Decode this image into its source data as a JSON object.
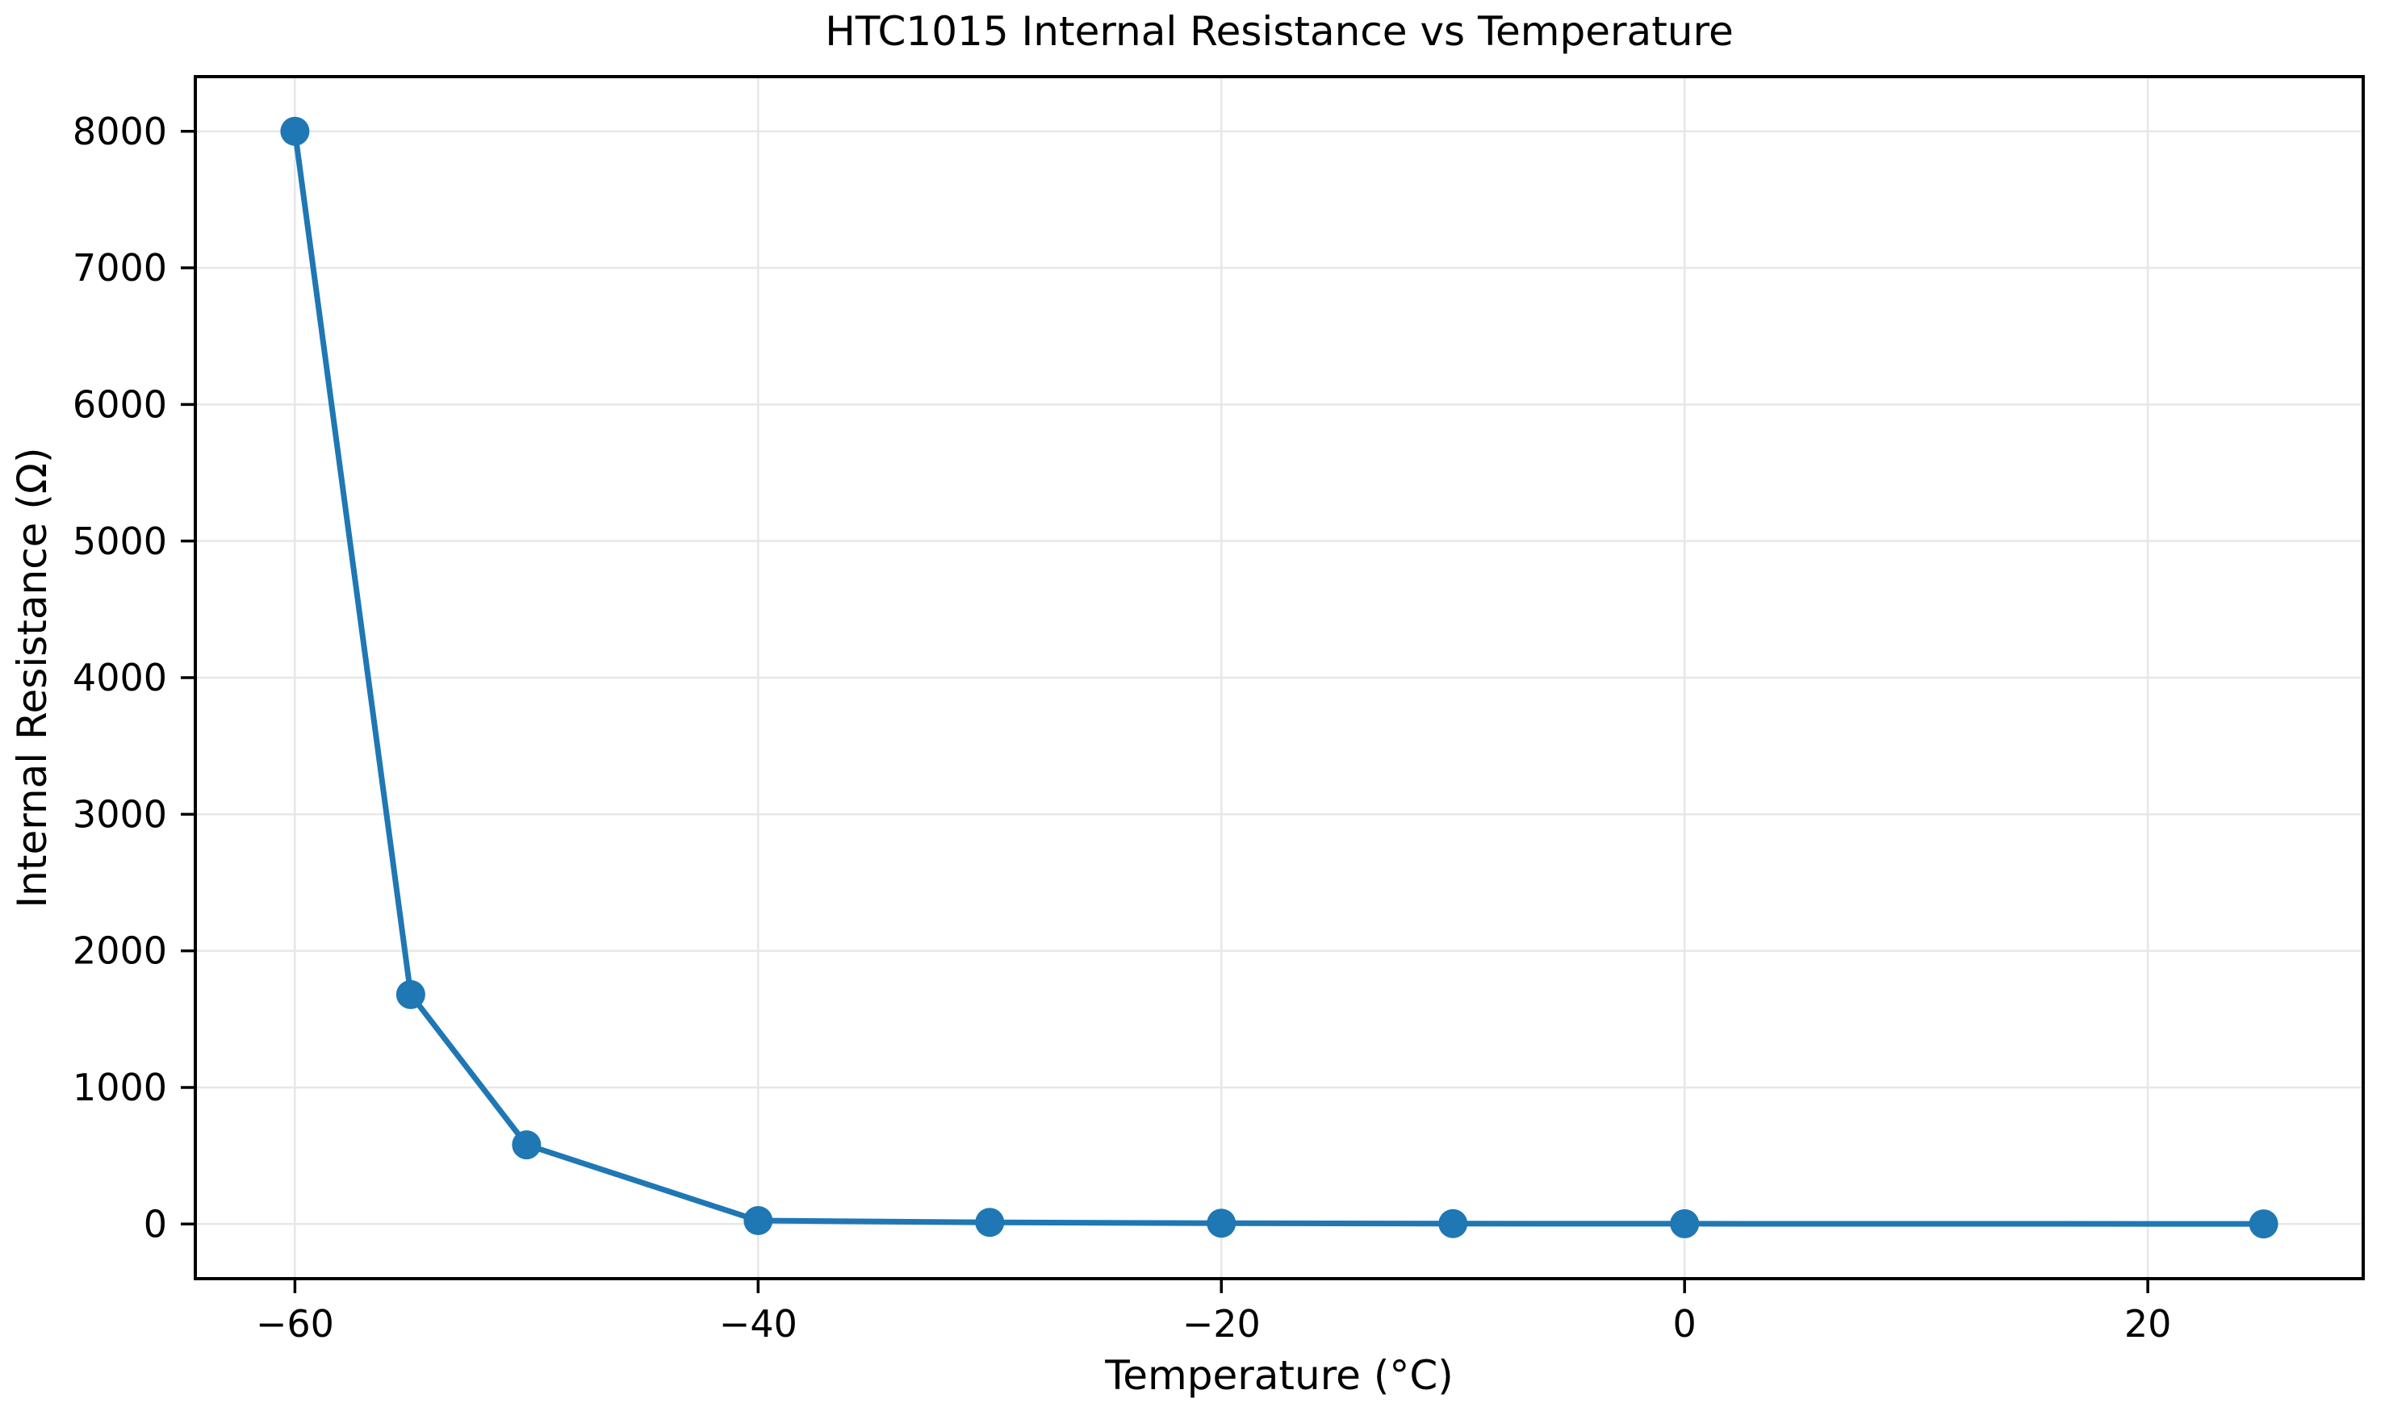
{
  "chart_data": {
    "type": "line",
    "title": "HTC1015 Internal Resistance vs Temperature",
    "xlabel": "Temperature (°C)",
    "ylabel": "Internal Resistance (Ω)",
    "x": [
      -60,
      -55,
      -50,
      -40,
      -30,
      -20,
      -10,
      0,
      25
    ],
    "y": [
      8000,
      1680,
      580,
      25,
      12,
      6,
      3,
      2,
      1
    ],
    "x_ticks": [
      -60,
      -40,
      -20,
      0,
      20
    ],
    "x_tick_labels": [
      "−60",
      "−40",
      "−20",
      "0",
      "20"
    ],
    "y_ticks": [
      0,
      1000,
      2000,
      3000,
      4000,
      5000,
      6000,
      7000,
      8000
    ],
    "y_tick_labels": [
      "0",
      "1000",
      "2000",
      "3000",
      "4000",
      "5000",
      "6000",
      "7000",
      "8000"
    ],
    "xlim": [
      -64.3,
      29.3
    ],
    "ylim": [
      -400,
      8400
    ],
    "grid": true,
    "legend": "none",
    "line_color": "#1f77b4",
    "marker": "circle",
    "grid_color": "#e7e7e7",
    "spine_color": "#000000",
    "background_color": "#ffffff"
  }
}
